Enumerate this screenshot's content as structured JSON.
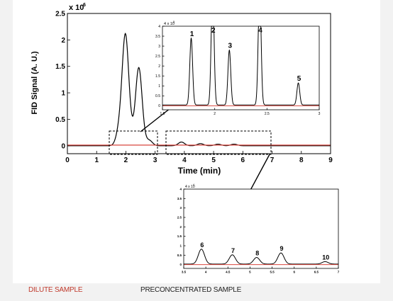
{
  "captions": {
    "dilute": "DILUTE SAMPLE",
    "preconcentrated": "PRECONCENTRATED SAMPLE"
  },
  "colors": {
    "signal": "#000000",
    "baseline": "#d9473f",
    "caption_dilute": "#c0392b"
  },
  "chart_data": [
    {
      "type": "line",
      "role": "main",
      "title": "",
      "xlabel": "Time (min)",
      "ylabel": "FID Signal (A. U.)",
      "y_exponent": "x 10",
      "y_exponent_power": "6",
      "xlim": [
        0,
        9
      ],
      "ylim": [
        -0.15,
        2.5
      ],
      "x_ticks": [
        0,
        1,
        2,
        3,
        4,
        5,
        6,
        7,
        8,
        9
      ],
      "x_tick_labels": [
        "0",
        "1",
        "2",
        "3",
        "4",
        "5",
        "6",
        "7",
        "8",
        "9"
      ],
      "y_ticks": [
        0,
        0.5,
        1,
        1.5,
        2,
        2.5
      ],
      "y_tick_labels": [
        "0",
        "0.5",
        "1",
        "1.5",
        "2",
        "2.5"
      ],
      "grid": false,
      "series": [
        {
          "color": "#000000",
          "peaks": [
            {
              "x": 1.78,
              "y": 0.3
            },
            {
              "x": 1.98,
              "y": 1.98
            },
            {
              "x": 2.14,
              "y": 0.26
            },
            {
              "x": 2.43,
              "y": 1.28
            },
            {
              "x": 2.52,
              "y": 0.26
            },
            {
              "x": 2.8,
              "y": 0.1
            },
            {
              "x": 3.9,
              "y": 0.07
            },
            {
              "x": 4.55,
              "y": 0.04
            },
            {
              "x": 5.15,
              "y": 0.03
            },
            {
              "x": 5.7,
              "y": 0.03
            }
          ],
          "baseline": 0.0
        },
        {
          "color": "#d9473f",
          "peaks": [],
          "baseline": 0.0
        }
      ]
    },
    {
      "type": "line",
      "role": "inset-dilute",
      "xlabel": "",
      "ylabel": "",
      "y_exponent": "4 x 10",
      "y_exponent_power": "5",
      "xlim": [
        1.5,
        3
      ],
      "ylim": [
        -0.2,
        4
      ],
      "x_ticks": [
        1.5,
        2,
        2.5,
        3
      ],
      "x_tick_labels": [
        "1.5",
        "2",
        "2.5",
        "3"
      ],
      "y_ticks": [
        0,
        0.5,
        1,
        1.5,
        2,
        2.5,
        3,
        3.5,
        4
      ],
      "y_tick_labels": [
        "0",
        "0.5",
        "1",
        "1.5",
        "2",
        "2.5",
        "3",
        "3.5",
        "4"
      ],
      "series": [
        {
          "color": "#000000",
          "peaks": [
            {
              "x": 1.775,
              "y": 3.4,
              "label": "1"
            },
            {
              "x": 1.98,
              "y": 6.0,
              "label": "2"
            },
            {
              "x": 2.14,
              "y": 2.8,
              "label": "3"
            },
            {
              "x": 2.43,
              "y": 6.0,
              "label": "4"
            },
            {
              "x": 2.8,
              "y": 1.15,
              "label": "5"
            }
          ],
          "baseline": 0.04
        },
        {
          "color": "#d9473f",
          "peaks": [],
          "baseline": 0.0
        }
      ]
    },
    {
      "type": "line",
      "role": "inset-preconcentrated",
      "xlabel": "",
      "ylabel": "",
      "y_exponent": "4 x 10",
      "y_exponent_power": "4",
      "xlim": [
        3.5,
        7
      ],
      "ylim": [
        -0.2,
        4
      ],
      "x_ticks": [
        3.5,
        4,
        4.5,
        5,
        5.5,
        6,
        6.5,
        7
      ],
      "x_tick_labels": [
        "3.5",
        "4",
        "4.5",
        "5",
        "5.5",
        "6",
        "6.5",
        "7"
      ],
      "y_ticks": [
        0,
        0.5,
        1,
        1.5,
        2,
        2.5,
        3,
        3.5,
        4
      ],
      "y_tick_labels": [
        "0",
        "0.5",
        "1",
        "1.5",
        "2",
        "2.5",
        "3",
        "3.5",
        "4"
      ],
      "series": [
        {
          "color": "#000000",
          "peaks": [
            {
              "x": 3.9,
              "y": 0.82,
              "label": "6"
            },
            {
              "x": 4.6,
              "y": 0.52,
              "label": "7"
            },
            {
              "x": 5.15,
              "y": 0.38,
              "label": "8"
            },
            {
              "x": 5.7,
              "y": 0.62,
              "label": "9"
            },
            {
              "x": 6.7,
              "y": 0.16,
              "label": "10"
            }
          ],
          "baseline": 0.03
        },
        {
          "color": "#d9473f",
          "peaks": [],
          "baseline": 0.0
        }
      ]
    }
  ]
}
